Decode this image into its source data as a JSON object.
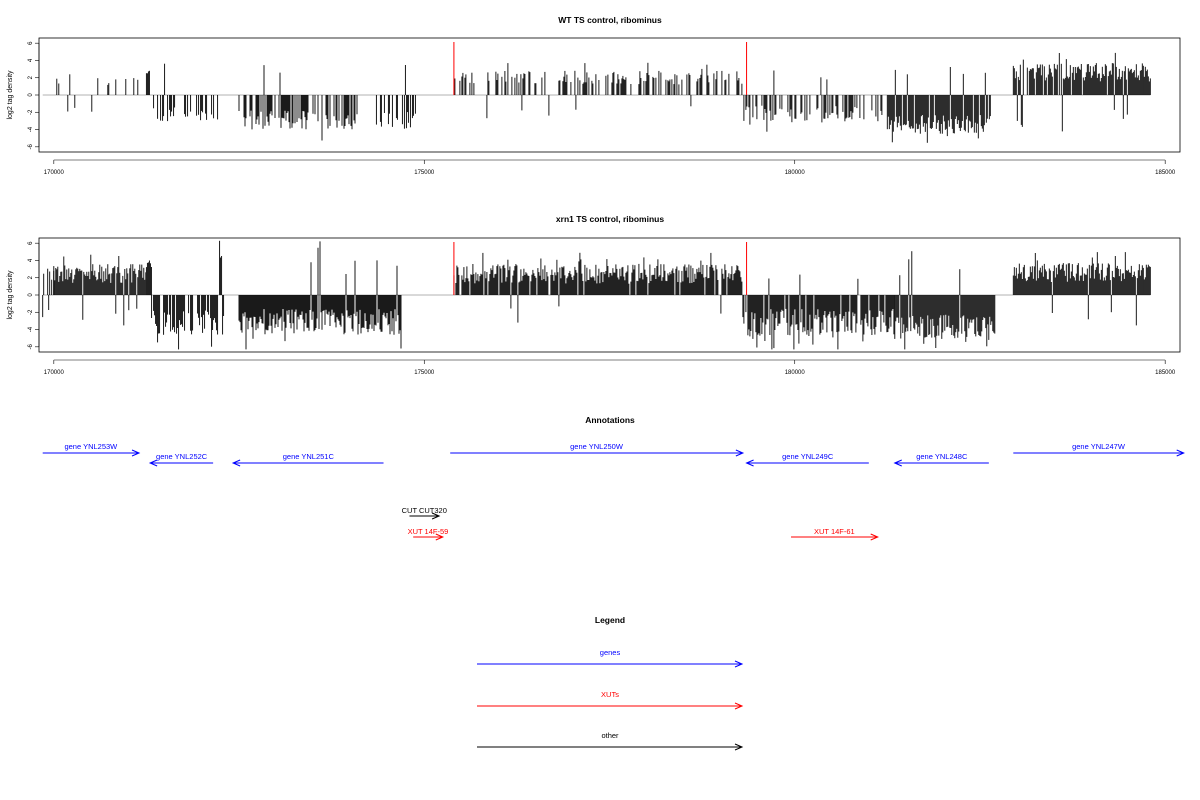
{
  "chart_data": [
    {
      "type": "bar",
      "title": "WT TS control, ribominus",
      "ylabel": "log2 tag density",
      "xlim": [
        169800,
        185200
      ],
      "ylim": [
        -6.6,
        6.6
      ],
      "xticks": [
        "170000",
        "175000",
        "180000",
        "185000"
      ],
      "yticks": [
        "6",
        "4",
        "2",
        "0",
        "-2",
        "-4",
        "-6"
      ],
      "markers": [
        175400,
        179350
      ],
      "seed": 11,
      "regions": [
        {
          "x": [
            169850,
            170000
          ],
          "mode": "zero"
        },
        {
          "x": [
            170000,
            171250
          ],
          "mode": "pos",
          "base": 1.1,
          "amp": 1.1,
          "density": 0.015
        },
        {
          "x": [
            171250,
            171320
          ],
          "mode": "pos",
          "base": 2.4,
          "amp": 0.8,
          "density": 0.06
        },
        {
          "x": [
            171320,
            172300
          ],
          "mode": "neg",
          "base": 1.4,
          "amp": 1.6,
          "density": 0.03
        },
        {
          "x": [
            172300,
            172500
          ],
          "mode": "zero"
        },
        {
          "x": [
            172500,
            174100
          ],
          "mode": "neg",
          "base": 1.8,
          "amp": 2.2,
          "density": 0.06
        },
        {
          "x": [
            174100,
            174300
          ],
          "mode": "zero"
        },
        {
          "x": [
            174300,
            174950
          ],
          "mode": "neg",
          "base": 1.9,
          "amp": 2.0,
          "density": 0.05
        },
        {
          "x": [
            174950,
            175400
          ],
          "mode": "zero"
        },
        {
          "x": [
            175400,
            179300
          ],
          "mode": "pos",
          "base": 1.2,
          "amp": 1.6,
          "density": 0.04
        },
        {
          "x": [
            179300,
            181250
          ],
          "mode": "neg",
          "base": 1.2,
          "amp": 2.0,
          "density": 0.04
        },
        {
          "x": [
            181250,
            182650
          ],
          "mode": "neg",
          "base": 2.3,
          "amp": 2.2,
          "density": 0.09
        },
        {
          "x": [
            182650,
            182950
          ],
          "mode": "zero"
        },
        {
          "x": [
            182950,
            184800
          ],
          "mode": "pos",
          "base": 1.5,
          "amp": 2.2,
          "density": 0.09
        }
      ]
    },
    {
      "type": "bar",
      "title": "xrn1 TS control, ribominus",
      "ylabel": "log2 tag density",
      "xlim": [
        169800,
        185200
      ],
      "ylim": [
        -6.6,
        6.6
      ],
      "xticks": [
        "170000",
        "175000",
        "180000",
        "185000"
      ],
      "yticks": [
        "6",
        "4",
        "2",
        "0",
        "-2",
        "-4",
        "-6"
      ],
      "markers": [
        175400,
        179350
      ],
      "seed": 29,
      "regions": [
        {
          "x": [
            169850,
            170000
          ],
          "mode": "mixed",
          "base": 1.2,
          "amp": 1.5,
          "density": 0.05
        },
        {
          "x": [
            170000,
            171250
          ],
          "mode": "pos",
          "base": 1.4,
          "amp": 2.2,
          "density": 0.1
        },
        {
          "x": [
            171250,
            171320
          ],
          "mode": "pos",
          "base": 3.2,
          "amp": 1.0,
          "density": 0.08
        },
        {
          "x": [
            171320,
            172300
          ],
          "mode": "neg",
          "base": 1.8,
          "amp": 3.0,
          "density": 0.07
        },
        {
          "x": [
            172300,
            172500
          ],
          "mode": "zero"
        },
        {
          "x": [
            172500,
            174700
          ],
          "mode": "neg",
          "base": 1.6,
          "amp": 3.0,
          "density": 0.1
        },
        {
          "x": [
            174700,
            175400
          ],
          "mode": "zero"
        },
        {
          "x": [
            175400,
            179300
          ],
          "mode": "pos",
          "base": 1.3,
          "amp": 2.3,
          "density": 0.09
        },
        {
          "x": [
            179300,
            181350
          ],
          "mode": "neg",
          "base": 1.6,
          "amp": 3.2,
          "density": 0.09
        },
        {
          "x": [
            181350,
            182700
          ],
          "mode": "neg",
          "base": 2.2,
          "amp": 3.0,
          "density": 0.12
        },
        {
          "x": [
            182700,
            182950
          ],
          "mode": "zero"
        },
        {
          "x": [
            182950,
            184800
          ],
          "mode": "pos",
          "base": 1.5,
          "amp": 2.2,
          "density": 0.1
        }
      ]
    }
  ],
  "colors": {
    "genes": "#0000ff",
    "xuts": "#ff0000",
    "other": "#000000",
    "marker": "#ff0000",
    "bars": "#000000"
  },
  "annotations": {
    "title": "Annotations",
    "features": [
      {
        "label": "gene YNL253W",
        "type": "genes",
        "strand": "+",
        "start": 169850,
        "end": 171150
      },
      {
        "label": "gene YNL252C",
        "type": "genes",
        "strand": "-",
        "start": 171300,
        "end": 172150
      },
      {
        "label": "gene YNL251C",
        "type": "genes",
        "strand": "-",
        "start": 172420,
        "end": 174450
      },
      {
        "label": "gene YNL250W",
        "type": "genes",
        "strand": "+",
        "start": 175350,
        "end": 179300
      },
      {
        "label": "gene YNL249C",
        "type": "genes",
        "strand": "-",
        "start": 179350,
        "end": 181000
      },
      {
        "label": "gene YNL248C",
        "type": "genes",
        "strand": "-",
        "start": 181350,
        "end": 182620
      },
      {
        "label": "gene YNL247W",
        "type": "genes",
        "strand": "+",
        "start": 182950,
        "end": 185250
      },
      {
        "label": "CUT CUT320",
        "type": "other",
        "strand": "+",
        "start": 174800,
        "end": 175200
      },
      {
        "label": "XUT 14F-59",
        "type": "xuts",
        "strand": "+",
        "start": 174850,
        "end": 175250
      },
      {
        "label": "XUT 14F-61",
        "type": "xuts",
        "strand": "+",
        "start": 179950,
        "end": 181120
      }
    ]
  },
  "legend": {
    "title": "Legend",
    "items": [
      {
        "label": "genes",
        "type": "genes"
      },
      {
        "label": "XUTs",
        "type": "xuts"
      },
      {
        "label": "other",
        "type": "other"
      }
    ]
  }
}
